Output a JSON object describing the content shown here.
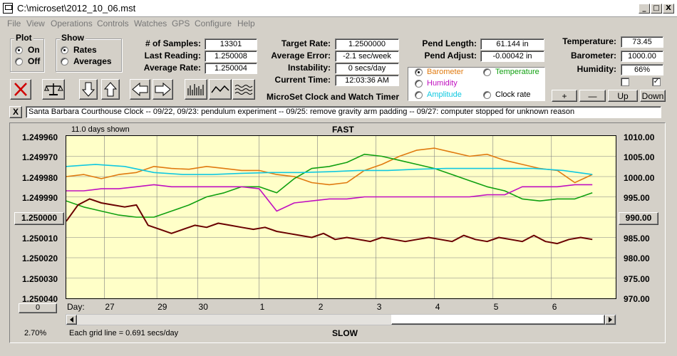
{
  "window": {
    "title": "C:\\microset\\2012_10_06.mst",
    "btn_min": "_",
    "btn_max": "□",
    "btn_close": "X"
  },
  "menu": [
    "File",
    "View",
    "Operations",
    "Controls",
    "Watches",
    "GPS",
    "Configure",
    "Help"
  ],
  "plot_group": {
    "title": "Plot",
    "on": "On",
    "off": "Off",
    "selected": "On"
  },
  "show_group": {
    "title": "Show",
    "rates": "Rates",
    "averages": "Averages",
    "selected": "Rates"
  },
  "stats": {
    "samples_label": "# of Samples:",
    "samples": "13301",
    "last_reading_label": "Last Reading:",
    "last_reading": "1.250008",
    "average_rate_label": "Average Rate:",
    "average_rate": "1.250004",
    "target_rate_label": "Target Rate:",
    "target_rate": "1.2500000",
    "average_error_label": "Average Error:",
    "average_error": "-2.1 sec/week",
    "instability_label": "Instability:",
    "instability": "0 secs/day",
    "current_time_label": "Current Time:",
    "current_time": "12:03:36 AM",
    "pend_length_label": "Pend Length:",
    "pend_length": "61.144 in",
    "pend_adjust_label": "Pend Adjust:",
    "pend_adjust": "-0.00042 in",
    "temperature_label": "Temperature:",
    "temperature": "73.45",
    "barometer_label": "Barometer:",
    "barometer": "1000.00",
    "humidity_label": "Humidity:",
    "humidity": "66%"
  },
  "sensor_options": [
    {
      "label": "Barometer",
      "color": "#e07a10",
      "selected": true
    },
    {
      "label": "Temperature",
      "color": "#10a010",
      "selected": false
    },
    {
      "label": "Humidity",
      "color": "#c010c0",
      "selected": false
    },
    {
      "label": "Amplitude",
      "color": "#10c8e0",
      "selected": false
    },
    {
      "label": "Clock rate",
      "color": "#000000",
      "selected": false
    }
  ],
  "app_caption": "MicroSet Clock and Watch Timer",
  "scale_buttons": {
    "plus": "+",
    "minus": "—",
    "up": "Up",
    "down": "Down"
  },
  "notes": "Santa Barbara Courthouse Clock  -- 09/22, 09/23: pendulum experiment  -- 09/25: remove gravity arm padding  -- 09/27: computer stopped for unknown reason",
  "notes_close": "X",
  "chart_header": {
    "days_shown": "11.0 days shown",
    "fast": "FAST",
    "slow": "SLOW",
    "grid_note": "Each grid line = 0.691 secs/day",
    "percent": "2.70%"
  },
  "left_value_button": "1.250000",
  "right_value_button": "990.00",
  "bottom_left_button": "0",
  "day_label": "Day:",
  "colors": {
    "plot_bg": "#ffffc8",
    "barometer": "#e07a10",
    "temperature": "#10a010",
    "humidity": "#c010c0",
    "amplitude": "#10c8e0",
    "clock_rate": "#6a0000",
    "stop_red": "#d00000"
  },
  "chart_data": {
    "type": "line",
    "x_label": "Day:",
    "x_ticks": [
      "27",
      "29",
      "30",
      "1",
      "2",
      "3",
      "4",
      "5",
      "6"
    ],
    "x_tick_positions": [
      0.65,
      1.55,
      2.25,
      3.3,
      4.3,
      5.3,
      6.3,
      7.3,
      8.3
    ],
    "x_range": [
      0,
      9.4
    ],
    "left_axis": {
      "ticks": [
        "1.249960",
        "1.249970",
        "1.249980",
        "1.249990",
        "1.250000",
        "1.250010",
        "1.250020",
        "1.250030",
        "1.250040"
      ],
      "range": [
        1.24996,
        1.25004
      ],
      "inverted": true
    },
    "right_axis": {
      "ticks": [
        "1010.00",
        "1005.00",
        "1000.00",
        "995.00",
        "990.00",
        "985.00",
        "980.00",
        "975.00",
        "970.00"
      ],
      "range": [
        970,
        1010
      ]
    },
    "grid": true,
    "series": [
      {
        "name": "Barometer",
        "axis": "right",
        "color": "#e07a10",
        "x": [
          0,
          0.3,
          0.6,
          0.9,
          1.2,
          1.5,
          1.8,
          2.1,
          2.4,
          2.7,
          3.0,
          3.3,
          3.6,
          3.9,
          4.2,
          4.5,
          4.8,
          5.1,
          5.4,
          5.7,
          6.0,
          6.3,
          6.6,
          6.9,
          7.2,
          7.5,
          7.8,
          8.1,
          8.4,
          8.7,
          9.0
        ],
        "y": [
          1000.0,
          1000.5,
          999.5,
          1000.5,
          1001.0,
          1002.5,
          1002.0,
          1001.8,
          1002.5,
          1002.0,
          1001.5,
          1001.5,
          1000.5,
          1000.0,
          998.5,
          998.0,
          998.5,
          1001.5,
          1003.0,
          1005.0,
          1006.5,
          1007.0,
          1006.0,
          1005.0,
          1005.5,
          1004.0,
          1003.0,
          1002.0,
          1001.5,
          998.5,
          1000.5
        ]
      },
      {
        "name": "Temperature",
        "axis": "right",
        "color": "#10a010",
        "x": [
          0,
          0.3,
          0.6,
          0.9,
          1.2,
          1.5,
          1.8,
          2.1,
          2.4,
          2.7,
          3.0,
          3.3,
          3.6,
          3.9,
          4.2,
          4.5,
          4.8,
          5.1,
          5.4,
          5.7,
          6.0,
          6.3,
          6.6,
          6.9,
          7.2,
          7.5,
          7.8,
          8.1,
          8.4,
          8.7,
          9.0
        ],
        "y": [
          994.0,
          992.5,
          991.5,
          990.5,
          990.0,
          990.0,
          991.5,
          993.0,
          995.0,
          996.0,
          997.5,
          997.5,
          996.0,
          999.5,
          1002.0,
          1002.5,
          1003.5,
          1005.5,
          1005.0,
          1004.0,
          1003.0,
          1002.0,
          1000.5,
          999.0,
          997.5,
          996.5,
          994.5,
          994.0,
          994.5,
          994.5,
          996.0
        ]
      },
      {
        "name": "Humidity",
        "axis": "right",
        "color": "#c010c0",
        "x": [
          0,
          0.3,
          0.6,
          0.9,
          1.2,
          1.5,
          1.8,
          2.1,
          2.4,
          2.7,
          3.0,
          3.3,
          3.6,
          3.9,
          4.2,
          4.5,
          4.8,
          5.1,
          5.4,
          5.7,
          6.0,
          6.3,
          6.6,
          6.9,
          7.2,
          7.5,
          7.8,
          8.1,
          8.4,
          8.7,
          9.0
        ],
        "y": [
          996.5,
          996.5,
          997.0,
          997.0,
          997.5,
          998.0,
          997.5,
          997.5,
          997.5,
          997.5,
          997.5,
          997.0,
          991.5,
          993.5,
          994.0,
          994.5,
          994.5,
          995.0,
          995.0,
          995.0,
          995.0,
          995.0,
          995.0,
          995.0,
          995.5,
          995.5,
          997.5,
          997.5,
          997.5,
          998.0,
          998.0
        ]
      },
      {
        "name": "Amplitude",
        "axis": "right",
        "color": "#10c8e0",
        "x": [
          0,
          0.5,
          1.0,
          1.5,
          2.0,
          2.5,
          3.0,
          3.5,
          4.0,
          4.5,
          5.0,
          5.5,
          6.0,
          6.5,
          7.0,
          7.5,
          8.0,
          8.5,
          9.0
        ],
        "y": [
          1002.5,
          1003.0,
          1002.5,
          1001.0,
          1000.5,
          1000.5,
          1000.8,
          1001.0,
          1001.0,
          1001.2,
          1001.5,
          1001.5,
          1001.8,
          1002.0,
          1002.0,
          1002.0,
          1002.0,
          1001.5,
          1000.5
        ]
      },
      {
        "name": "Clock rate",
        "axis": "left",
        "color": "#6a0000",
        "x": [
          0,
          0.2,
          0.4,
          0.6,
          0.8,
          1.0,
          1.2,
          1.4,
          1.6,
          1.8,
          2.0,
          2.2,
          2.4,
          2.6,
          2.8,
          3.0,
          3.2,
          3.4,
          3.6,
          3.8,
          4.0,
          4.2,
          4.4,
          4.6,
          4.8,
          5.0,
          5.2,
          5.4,
          5.6,
          5.8,
          6.0,
          6.2,
          6.4,
          6.6,
          6.8,
          7.0,
          7.2,
          7.4,
          7.6,
          7.8,
          8.0,
          8.2,
          8.4,
          8.6,
          8.8,
          9.0
        ],
        "y": [
          1.250002,
          1.249994,
          1.249991,
          1.249993,
          1.249994,
          1.249995,
          1.249994,
          1.250004,
          1.250006,
          1.250008,
          1.250006,
          1.250004,
          1.250005,
          1.250003,
          1.250004,
          1.250005,
          1.250006,
          1.250005,
          1.250007,
          1.250008,
          1.250009,
          1.25001,
          1.250008,
          1.250011,
          1.25001,
          1.250011,
          1.250012,
          1.25001,
          1.250011,
          1.250012,
          1.250011,
          1.25001,
          1.250011,
          1.250012,
          1.250009,
          1.250011,
          1.250012,
          1.25001,
          1.250011,
          1.250012,
          1.250009,
          1.250012,
          1.250013,
          1.250011,
          1.25001,
          1.250011
        ]
      }
    ]
  }
}
